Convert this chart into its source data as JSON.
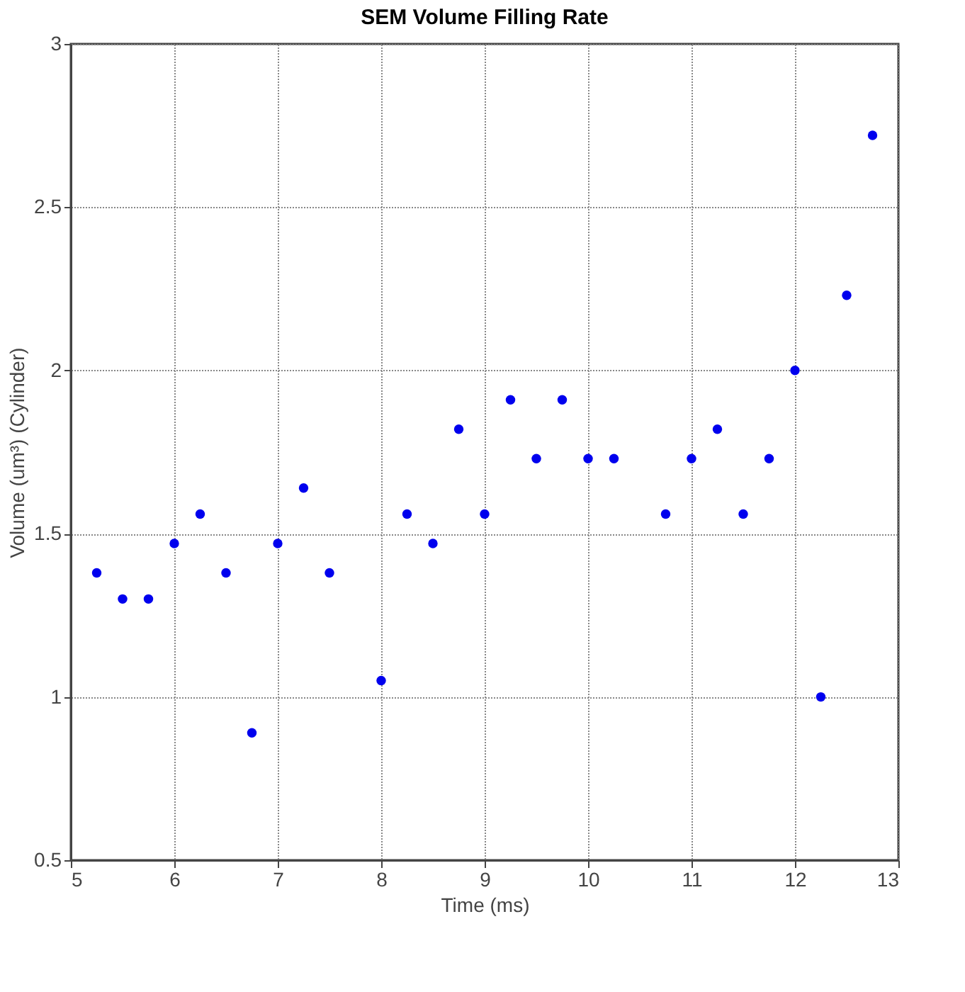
{
  "chart_data": {
    "type": "scatter",
    "title": "SEM Volume Filling Rate",
    "xlabel": "Time (ms)",
    "ylabel": "Volume (um³) (Cylinder)",
    "x": [
      5.25,
      5.5,
      5.75,
      6.0,
      6.25,
      6.5,
      6.75,
      7.0,
      7.25,
      7.5,
      8.0,
      8.25,
      8.5,
      8.75,
      9.0,
      9.25,
      9.5,
      9.75,
      10.0,
      10.25,
      10.75,
      11.0,
      11.25,
      11.5,
      11.75,
      12.0,
      12.25,
      12.5,
      12.75
    ],
    "series": [
      {
        "color": "#0000ee",
        "values": [
          1.38,
          1.3,
          1.3,
          1.47,
          1.56,
          1.38,
          0.89,
          1.47,
          1.64,
          1.38,
          1.05,
          1.56,
          1.47,
          1.82,
          1.56,
          1.91,
          1.73,
          1.91,
          1.73,
          1.73,
          1.56,
          1.73,
          1.82,
          1.56,
          1.73,
          2.0,
          1.0,
          2.23,
          2.72
        ]
      }
    ],
    "xlim": [
      5,
      13
    ],
    "xticks": [
      5,
      6,
      7,
      8,
      9,
      10,
      11,
      12,
      13
    ],
    "ylim": [
      0.5,
      3
    ],
    "yticks": [
      0.5,
      1,
      1.5,
      2,
      2.5,
      3
    ],
    "grid": true,
    "marker": "circle"
  }
}
